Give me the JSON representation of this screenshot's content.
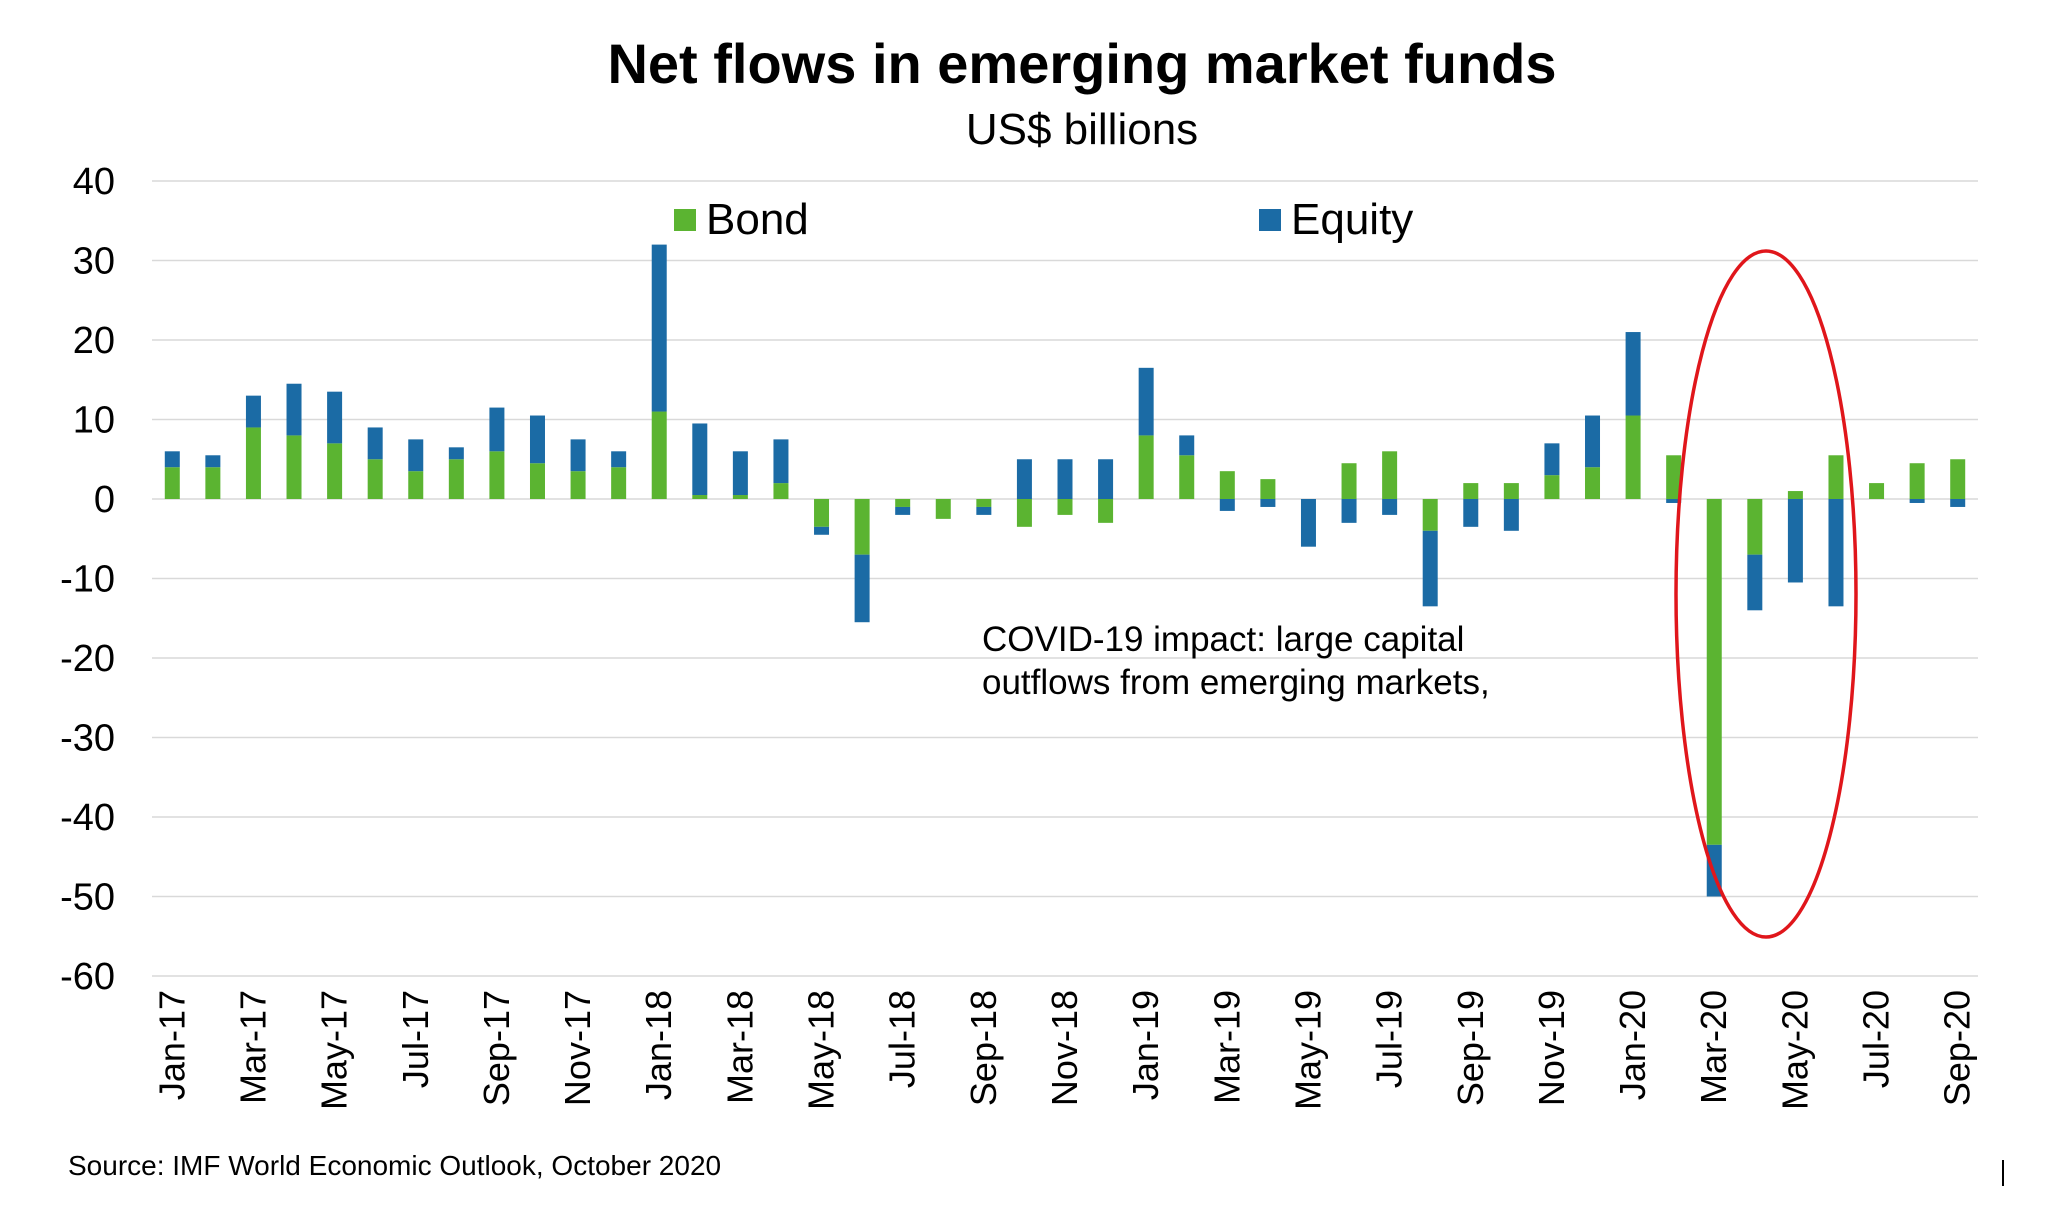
{
  "chart_data": {
    "type": "bar",
    "stacked": true,
    "title": "Net flows in emerging market funds",
    "subtitle": "US$ billions",
    "ylabel": "",
    "xlabel": "",
    "ylim": [
      -60,
      40
    ],
    "yticks": [
      "40",
      "30",
      "20",
      "10",
      "0",
      "-10",
      "-20",
      "-30",
      "-40",
      "-50",
      "-60"
    ],
    "grid": true,
    "legend_position": "top",
    "categories": [
      "Jan-17",
      "Feb-17",
      "Mar-17",
      "Apr-17",
      "May-17",
      "Jun-17",
      "Jul-17",
      "Aug-17",
      "Sep-17",
      "Oct-17",
      "Nov-17",
      "Dec-17",
      "Jan-18",
      "Feb-18",
      "Mar-18",
      "Apr-18",
      "May-18",
      "Jun-18",
      "Jul-18",
      "Aug-18",
      "Sep-18",
      "Oct-18",
      "Nov-18",
      "Dec-18",
      "Jan-19",
      "Feb-19",
      "Mar-19",
      "Apr-19",
      "May-19",
      "Jun-19",
      "Jul-19",
      "Aug-19",
      "Sep-19",
      "Oct-19",
      "Nov-19",
      "Dec-19",
      "Jan-20",
      "Feb-20",
      "Mar-20",
      "Apr-20",
      "May-20",
      "Jun-20",
      "Jul-20",
      "Aug-20",
      "Sep-20"
    ],
    "tick_labels": [
      "Jan-17",
      "Mar-17",
      "May-17",
      "Jul-17",
      "Sep-17",
      "Nov-17",
      "Jan-18",
      "Mar-18",
      "May-18",
      "Jul-18",
      "Sep-18",
      "Nov-18",
      "Jan-19",
      "Mar-19",
      "May-19",
      "Jul-19",
      "Sep-19",
      "Nov-19",
      "Jan-20",
      "Mar-20",
      "May-20",
      "Jul-20",
      "Sep-20"
    ],
    "series": [
      {
        "name": "Bond",
        "color": "#5BB431",
        "values": [
          4,
          4,
          9,
          8,
          7,
          5,
          3.5,
          5,
          6,
          4.5,
          3.5,
          4,
          11,
          0.5,
          0.5,
          2,
          -3.5,
          -7,
          -1,
          -2.5,
          -1,
          -3.5,
          -2,
          -3,
          8,
          5.5,
          3.5,
          2.5,
          0,
          4.5,
          6,
          -4,
          2,
          2,
          3,
          4,
          10.5,
          5.5,
          -43.5,
          -7,
          1,
          5.5,
          2,
          4.5,
          5
        ]
      },
      {
        "name": "Equity",
        "color": "#1B6BA5",
        "values": [
          2,
          1.5,
          4,
          6.5,
          6.5,
          4,
          4,
          1.5,
          5.5,
          6,
          4,
          2,
          21,
          9,
          5.5,
          5.5,
          -1,
          -8.5,
          -1,
          0,
          -1,
          5,
          5,
          5,
          8.5,
          2.5,
          -1.5,
          -1,
          -6,
          -3,
          -2,
          -9.5,
          -3.5,
          -4,
          4,
          6.5,
          10.5,
          -0.5,
          -6.5,
          -7,
          -10.5,
          -13.5,
          0,
          -0.5,
          -1
        ]
      }
    ],
    "annotation": {
      "lines": [
        "COVID-19 impact: large capital",
        "outflows from emerging markets,"
      ],
      "highlight_shape": "ellipse",
      "highlight_color": "#E0161B",
      "highlight_range": [
        "Mar-20",
        "Jun-20"
      ]
    },
    "source": "Source: IMF World Economic Outlook, October 2020"
  }
}
